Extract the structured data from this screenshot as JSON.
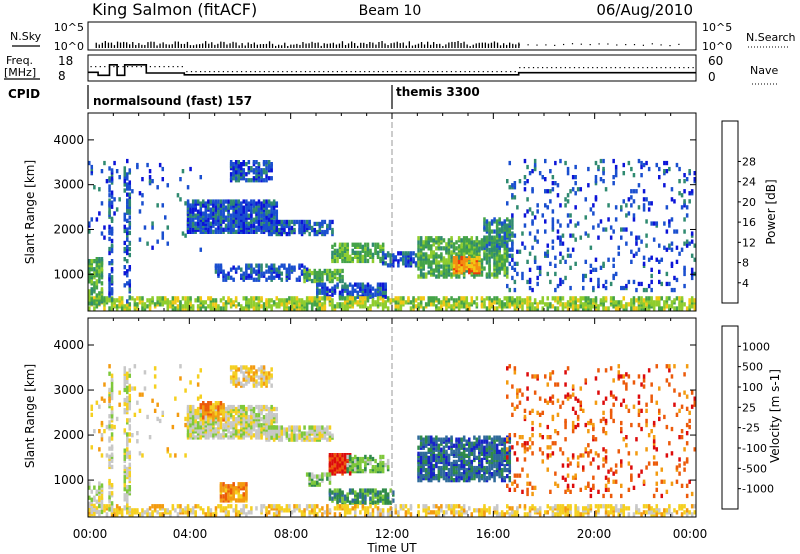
{
  "header": {
    "title": "King Salmon (fitACF)",
    "beam": "Beam 10",
    "date": "06/Aug/2010"
  },
  "noise_panel": {
    "left_label": "N.Sky",
    "right_label": "N.Search",
    "y_ticks": [
      "10^5",
      "10^0"
    ]
  },
  "freq_panel": {
    "left_label_1": "Freq.",
    "left_label_2": "[MHz]",
    "right_label": "Nave",
    "left_ticks": [
      "18",
      "8"
    ],
    "right_ticks": [
      "60",
      "0"
    ],
    "freq_steps": [
      {
        "t": 0.0,
        "f": 12.5
      },
      {
        "t": 0.4,
        "f": 12.5
      },
      {
        "t": 0.4,
        "f": 10.5
      },
      {
        "t": 0.85,
        "f": 10.5
      },
      {
        "t": 0.85,
        "f": 17.5
      },
      {
        "t": 1.15,
        "f": 17.5
      },
      {
        "t": 1.15,
        "f": 10.5
      },
      {
        "t": 1.45,
        "f": 10.5
      },
      {
        "t": 1.45,
        "f": 17.5
      },
      {
        "t": 2.3,
        "f": 17.5
      },
      {
        "t": 2.3,
        "f": 12.0
      },
      {
        "t": 3.8,
        "f": 12.0
      },
      {
        "t": 3.8,
        "f": 10.8
      },
      {
        "t": 17.0,
        "f": 10.8
      },
      {
        "t": 17.0,
        "f": 12.2
      },
      {
        "t": 24.0,
        "f": 12.2
      }
    ]
  },
  "cpid_panel": {
    "label": "CPID",
    "segments": [
      {
        "start_hour": 0,
        "text": "normalsound (fast) 157"
      },
      {
        "start_hour": 12,
        "text": "themis 3300"
      }
    ]
  },
  "x_axis": {
    "ticks": [
      "00:00",
      "04:00",
      "08:00",
      "12:00",
      "16:00",
      "20:00",
      "00:00"
    ],
    "label": "Time UT"
  },
  "chart_data": [
    {
      "type": "heatmap",
      "name": "Power",
      "ylabel": "Slant Range [km]",
      "y_ticks": [
        "1000",
        "2000",
        "3000",
        "4000"
      ],
      "xlim_hours": [
        0,
        24
      ],
      "ylim_km": [
        180,
        4600
      ],
      "colorbar": {
        "label": "Power [dB]",
        "ticks": [
          "4",
          "8",
          "12",
          "16",
          "20",
          "24",
          "28"
        ],
        "colors": [
          "#0b14d8",
          "#1a4fcf",
          "#2f8a70",
          "#44a348",
          "#8fcd2e",
          "#f2c815",
          "#f58e10",
          "#ec3a0a",
          "#d80a0a"
        ]
      },
      "features": [
        {
          "t0": 3.9,
          "t1": 7.4,
          "r0": 1900,
          "r1": 2600,
          "level": 1,
          "density": 0.75
        },
        {
          "t0": 7.0,
          "t1": 9.6,
          "r0": 1850,
          "r1": 2150,
          "level": 1,
          "density": 0.65
        },
        {
          "t0": 5.6,
          "t1": 7.2,
          "r0": 3050,
          "r1": 3500,
          "level": 1,
          "density": 0.55
        },
        {
          "t0": 5.0,
          "t1": 8.6,
          "r0": 830,
          "r1": 1150,
          "level": 1,
          "density": 0.45
        },
        {
          "t0": 8.5,
          "t1": 10.0,
          "r0": 800,
          "r1": 1050,
          "level": 3,
          "density": 0.7
        },
        {
          "t0": 9.6,
          "t1": 11.6,
          "r0": 1250,
          "r1": 1650,
          "level": 3,
          "density": 0.65
        },
        {
          "t0": 9.0,
          "t1": 11.7,
          "r0": 450,
          "r1": 750,
          "level": 1,
          "density": 0.6
        },
        {
          "t0": 11.6,
          "t1": 13.0,
          "r0": 1150,
          "r1": 1450,
          "level": 1,
          "density": 0.55
        },
        {
          "t0": 13.0,
          "t1": 16.5,
          "r0": 900,
          "r1": 1800,
          "level": 3,
          "density": 0.6
        },
        {
          "t0": 14.4,
          "t1": 15.4,
          "r0": 1000,
          "r1": 1350,
          "level": 6,
          "density": 0.7
        },
        {
          "t0": 15.6,
          "t1": 16.8,
          "r0": 1500,
          "r1": 2200,
          "level": 2,
          "density": 0.55
        },
        {
          "t0": 0.0,
          "t1": 24.0,
          "r0": 190,
          "r1": 420,
          "level": 4,
          "density": 0.55
        },
        {
          "t0": 0.0,
          "t1": 0.6,
          "r0": 300,
          "r1": 1300,
          "level": 3,
          "density": 0.5
        },
        {
          "t0": 0.8,
          "t1": 1.0,
          "r0": 300,
          "r1": 3400,
          "level": 1,
          "density": 0.4
        },
        {
          "t0": 1.4,
          "t1": 1.65,
          "r0": 300,
          "r1": 3400,
          "level": 1,
          "density": 0.4
        },
        {
          "t0": 16.5,
          "t1": 24.0,
          "r0": 600,
          "r1": 3500,
          "level": 1,
          "density": 0.08
        },
        {
          "t0": 0.0,
          "t1": 4.5,
          "r0": 1500,
          "r1": 3500,
          "level": 1,
          "density": 0.04
        }
      ]
    },
    {
      "type": "heatmap",
      "name": "Velocity",
      "ylabel": "Slant Range [km]",
      "y_ticks": [
        "1000",
        "2000",
        "3000",
        "4000"
      ],
      "xlim_hours": [
        0,
        24
      ],
      "ylim_km": [
        180,
        4600
      ],
      "colorbar": {
        "label": "Velocity [m s-1]",
        "ticks": [
          "1000",
          "500",
          "100",
          "25",
          "-25",
          "-100",
          "-500",
          "-1000"
        ],
        "colors": [
          "#1722c9",
          "#2f6a9a",
          "#2e8a48",
          "#7ec83a",
          "#c8c8c8",
          "#f5d020",
          "#f39b10",
          "#ec5a0a",
          "#dd0b0b"
        ]
      },
      "features": [
        {
          "t0": 3.9,
          "t1": 7.4,
          "r0": 1900,
          "r1": 2600,
          "level": 4,
          "density": 0.7
        },
        {
          "t0": 7.0,
          "t1": 9.6,
          "r0": 1850,
          "r1": 2150,
          "level": 4,
          "density": 0.65
        },
        {
          "t0": 5.6,
          "t1": 7.2,
          "r0": 3050,
          "r1": 3500,
          "level": 5,
          "density": 0.5
        },
        {
          "t0": 4.4,
          "t1": 5.3,
          "r0": 2300,
          "r1": 2700,
          "level": 6,
          "density": 0.6
        },
        {
          "t0": 5.2,
          "t1": 6.2,
          "r0": 500,
          "r1": 900,
          "level": 6,
          "density": 0.7
        },
        {
          "t0": 9.5,
          "t1": 10.3,
          "r0": 1100,
          "r1": 1550,
          "level": 8,
          "density": 0.75
        },
        {
          "t0": 8.6,
          "t1": 9.5,
          "r0": 850,
          "r1": 1100,
          "level": 3,
          "density": 0.6
        },
        {
          "t0": 10.2,
          "t1": 11.8,
          "r0": 1150,
          "r1": 1500,
          "level": 3,
          "density": 0.55
        },
        {
          "t0": 13.0,
          "t1": 16.7,
          "r0": 950,
          "r1": 1900,
          "level": 1,
          "density": 0.65
        },
        {
          "t0": 9.5,
          "t1": 12.0,
          "r0": 450,
          "r1": 750,
          "level": 2,
          "density": 0.55
        },
        {
          "t0": 0.0,
          "t1": 24.0,
          "r0": 190,
          "r1": 400,
          "level": 5,
          "density": 0.45
        },
        {
          "t0": 0.0,
          "t1": 0.6,
          "r0": 200,
          "r1": 900,
          "level": 4,
          "density": 0.5
        },
        {
          "t0": 0.8,
          "t1": 1.0,
          "r0": 300,
          "r1": 3400,
          "level": 4,
          "density": 0.4
        },
        {
          "t0": 1.4,
          "t1": 1.65,
          "r0": 300,
          "r1": 3400,
          "level": 4,
          "density": 0.4
        },
        {
          "t0": 16.5,
          "t1": 24.0,
          "r0": 600,
          "r1": 3500,
          "level": 7,
          "density": 0.08
        },
        {
          "t0": 0.0,
          "t1": 4.5,
          "r0": 1500,
          "r1": 3500,
          "level": 5,
          "density": 0.04
        }
      ]
    }
  ]
}
